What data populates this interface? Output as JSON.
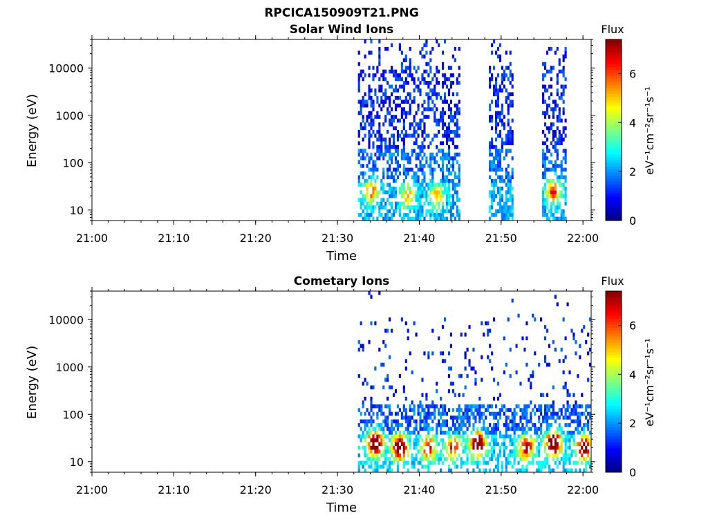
{
  "figure_title": "RPCICA150909T21.PNG",
  "colors": {
    "background": "#ffffff",
    "colormap": [
      "#00007f",
      "#0000ff",
      "#007fff",
      "#00ffff",
      "#7fff7f",
      "#ffff00",
      "#ff7f00",
      "#ff0000",
      "#7f0000"
    ]
  },
  "chart_data": [
    {
      "type": "heatmap",
      "title": "Solar Wind Ions",
      "xlabel": "Time",
      "ylabel": "Energy (eV)",
      "x_ticks": [
        "21:00",
        "21:10",
        "21:20",
        "21:30",
        "21:40",
        "21:50",
        "22:00"
      ],
      "x_range_min": [
        0,
        61
      ],
      "y_scale": "log",
      "y_ticks": [
        10,
        100,
        1000,
        10000
      ],
      "y_tick_labels": [
        "10",
        "100",
        "1000",
        "10000"
      ],
      "y_range": [
        6,
        40000
      ],
      "colorbar": {
        "title": "Flux",
        "label": "eV⁻¹cm⁻²sr⁻¹s⁻¹",
        "range": [
          0,
          7.4
        ],
        "ticks": [
          0,
          2,
          4,
          6
        ],
        "tick_labels": [
          "0",
          "2",
          "4",
          "6"
        ]
      },
      "data_intervals_min": [
        [
          32.5,
          45
        ],
        [
          48.5,
          51.5
        ],
        [
          55,
          58
        ]
      ],
      "hotspots": [
        {
          "time_min": 34,
          "energy_eV": 25,
          "flux": 3.8
        },
        {
          "time_min": 56.2,
          "energy_eV": 25,
          "flux": 4.2
        },
        {
          "time_min": 38.5,
          "energy_eV": 20,
          "flux": 3.0
        },
        {
          "time_min": 42,
          "energy_eV": 20,
          "flux": 2.8
        }
      ]
    },
    {
      "type": "heatmap",
      "title": "Cometary Ions",
      "xlabel": "Time",
      "ylabel": "Energy (eV)",
      "x_ticks": [
        "21:00",
        "21:10",
        "21:20",
        "21:30",
        "21:40",
        "21:50",
        "22:00"
      ],
      "x_range_min": [
        0,
        61
      ],
      "y_scale": "log",
      "y_ticks": [
        10,
        100,
        1000,
        10000
      ],
      "y_tick_labels": [
        "10",
        "100",
        "1000",
        "10000"
      ],
      "y_range": [
        6,
        40000
      ],
      "colorbar": {
        "title": "Flux",
        "label": "eV⁻¹cm⁻²sr⁻¹s⁻¹",
        "range": [
          0,
          7.4
        ],
        "ticks": [
          0,
          2,
          4,
          6
        ],
        "tick_labels": [
          "0",
          "2",
          "4",
          "6"
        ]
      },
      "data_intervals_min": [
        [
          32.5,
          61
        ]
      ],
      "hotspots": [
        {
          "time_min": 34.5,
          "energy_eV": 25,
          "flux": 6.8
        },
        {
          "time_min": 37.5,
          "energy_eV": 20,
          "flux": 6.5
        },
        {
          "time_min": 41,
          "energy_eV": 20,
          "flux": 4.5
        },
        {
          "time_min": 44,
          "energy_eV": 20,
          "flux": 4.2
        },
        {
          "time_min": 47,
          "energy_eV": 25,
          "flux": 7.0
        },
        {
          "time_min": 53,
          "energy_eV": 20,
          "flux": 4.8
        },
        {
          "time_min": 56.3,
          "energy_eV": 25,
          "flux": 7.2
        },
        {
          "time_min": 60,
          "energy_eV": 20,
          "flux": 6.0
        }
      ]
    }
  ]
}
